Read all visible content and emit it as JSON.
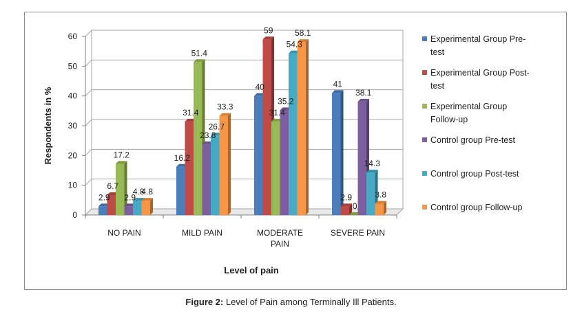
{
  "caption": {
    "prefix": "Figure 2:",
    "text": " Level of Pain among Terminally Ill Patients."
  },
  "chart_data": {
    "type": "bar",
    "title": "",
    "xlabel": "Level of pain",
    "ylabel": "Respondents in %",
    "ylim": [
      0,
      60
    ],
    "yticks": [
      0,
      10,
      20,
      30,
      40,
      50,
      60
    ],
    "grid": true,
    "legend_position": "right",
    "categories": [
      "NO PAIN",
      "MILD PAIN",
      "MODERATE PAIN",
      "SEVERE PAIN"
    ],
    "category_lines": [
      [
        "NO PAIN"
      ],
      [
        "MILD PAIN"
      ],
      [
        "MODERATE",
        "PAIN"
      ],
      [
        "SEVERE PAIN"
      ]
    ],
    "series": [
      {
        "name": "Experimental Group Pre-test",
        "legend_lines": [
          "Experimental Group Pre-",
          "test"
        ],
        "color": "#4a7ebb",
        "values": [
          2.9,
          16.2,
          40,
          41
        ]
      },
      {
        "name": "Experimental Group Post-test",
        "legend_lines": [
          "Experimental Group Post-",
          "test"
        ],
        "color": "#be4b48",
        "values": [
          6.7,
          31.4,
          59,
          2.9
        ]
      },
      {
        "name": "Experimental Group Follow-up",
        "legend_lines": [
          "Experimental Group",
          "Follow-up"
        ],
        "color": "#98b954",
        "values": [
          17.2,
          51.4,
          31.4,
          0
        ]
      },
      {
        "name": "Control group Pre-test",
        "legend_lines": [
          "Control group Pre-test"
        ],
        "color": "#7d5fa0",
        "values": [
          2.9,
          23.8,
          35.2,
          38.1
        ]
      },
      {
        "name": "Control group Post-test",
        "legend_lines": [
          "Control group Post-test"
        ],
        "color": "#46aac5",
        "values": [
          4.8,
          26.7,
          54.3,
          14.3
        ]
      },
      {
        "name": "Control group Follow-up",
        "legend_lines": [
          "Control group Follow-up"
        ],
        "color": "#f79646",
        "values": [
          4.8,
          33.3,
          58.1,
          3.8
        ]
      }
    ]
  }
}
